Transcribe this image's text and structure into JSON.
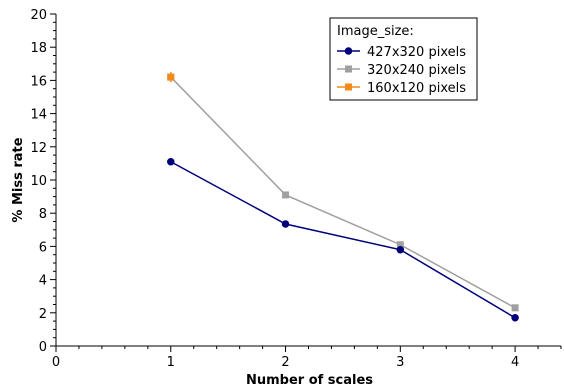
{
  "chart_data": {
    "type": "line",
    "xlabel": "Number of scales",
    "ylabel": "% Miss rate",
    "xlim": [
      0,
      4.4
    ],
    "ylim": [
      0,
      20
    ],
    "x_ticks": [
      0,
      1,
      2,
      3,
      4
    ],
    "y_ticks": [
      0,
      2,
      4,
      6,
      8,
      10,
      12,
      14,
      16,
      18,
      20
    ],
    "grid": false,
    "legend_title": "Image_size:",
    "legend_position": "top-right",
    "series": [
      {
        "name": "427x320 pixels",
        "color": "#00007a",
        "marker": "circle",
        "x": [
          1,
          2,
          3,
          4
        ],
        "y": [
          11.1,
          7.35,
          5.8,
          1.7
        ]
      },
      {
        "name": "320x240 pixels",
        "color": "#a0a0a0",
        "marker": "square",
        "x": [
          1,
          2,
          3,
          4
        ],
        "y": [
          16.2,
          9.1,
          6.1,
          2.3
        ]
      },
      {
        "name": "160x120 pixels",
        "color": "#f28a1e",
        "marker": "square",
        "x": [
          1
        ],
        "y": [
          16.2
        ]
      }
    ]
  }
}
